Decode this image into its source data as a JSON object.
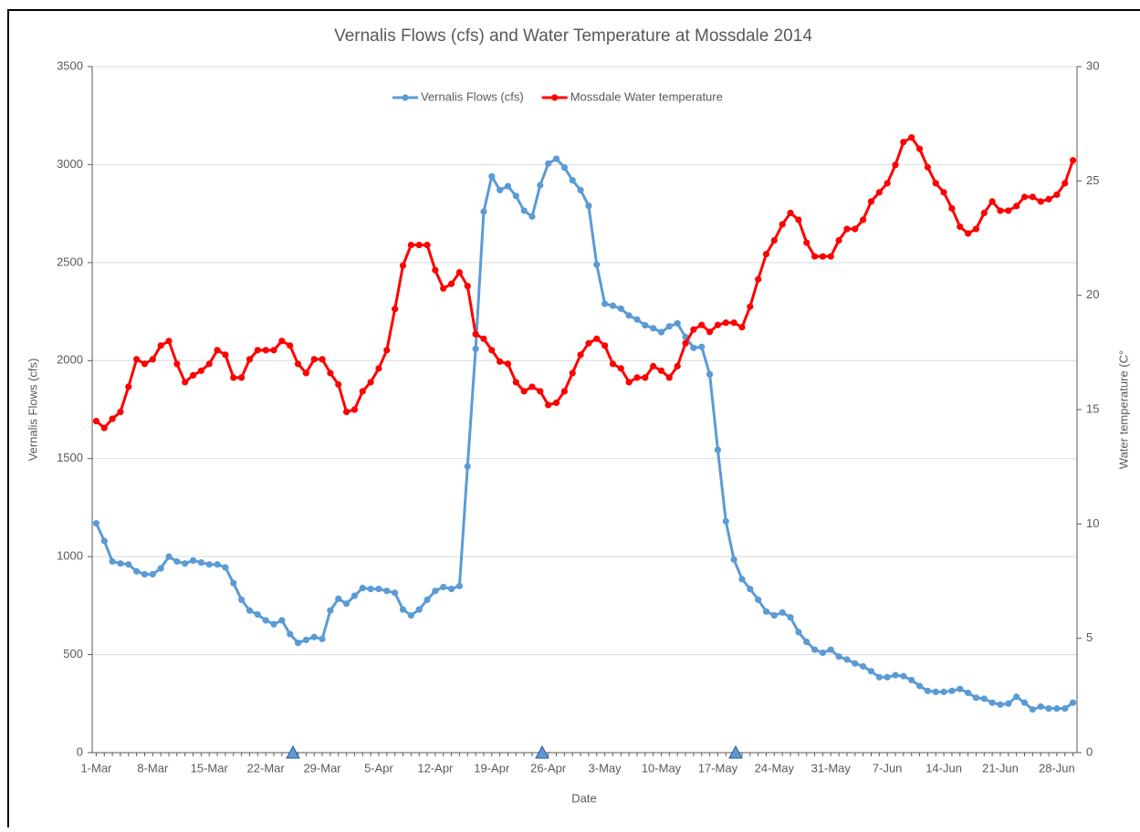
{
  "chart_data": {
    "type": "line",
    "title": "Vernalis Flows (cfs) and Water Temperature at Mossdale 2014",
    "x_label": "Date",
    "y_label": "Vernalis Flows (cfs)",
    "y2_label": "Water temperature (C°",
    "categories": [
      "1-Mar",
      null,
      null,
      null,
      null,
      null,
      null,
      "8-Mar",
      null,
      null,
      null,
      null,
      null,
      null,
      "15-Mar",
      null,
      null,
      null,
      null,
      null,
      null,
      "22-Mar",
      null,
      null,
      null,
      null,
      null,
      null,
      "29-Mar",
      null,
      null,
      null,
      null,
      null,
      null,
      "5-Apr",
      null,
      null,
      null,
      null,
      null,
      null,
      "12-Apr",
      null,
      null,
      null,
      null,
      null,
      null,
      "19-Apr",
      null,
      null,
      null,
      null,
      null,
      null,
      "26-Apr",
      null,
      null,
      null,
      null,
      null,
      null,
      "3-May",
      null,
      null,
      null,
      null,
      null,
      null,
      "10-May",
      null,
      null,
      null,
      null,
      null,
      null,
      "17-May",
      null,
      null,
      null,
      null,
      null,
      null,
      "24-May",
      null,
      null,
      null,
      null,
      null,
      null,
      "31-May",
      null,
      null,
      null,
      null,
      null,
      null,
      "7-Jun",
      null,
      null,
      null,
      null,
      null,
      null,
      "14-Jun",
      null,
      null,
      null,
      null,
      null,
      null,
      "21-Jun",
      null,
      null,
      null,
      null,
      null,
      null,
      "28-Jun",
      null,
      null
    ],
    "series": [
      {
        "name": "Vernalis Flows (cfs)",
        "color": "#5b9bd5",
        "axis": "y",
        "values": [
          1170,
          1080,
          975,
          965,
          960,
          925,
          910,
          910,
          940,
          1000,
          975,
          965,
          980,
          970,
          960,
          960,
          945,
          865,
          780,
          725,
          705,
          675,
          655,
          675,
          605,
          560,
          575,
          590,
          580,
          725,
          785,
          760,
          800,
          840,
          835,
          835,
          825,
          815,
          730,
          700,
          730,
          780,
          825,
          845,
          835,
          850,
          1460,
          2060,
          2760,
          2940,
          2870,
          2890,
          2840,
          2765,
          2735,
          2895,
          3005,
          3030,
          2985,
          2920,
          2870,
          2790,
          2490,
          2290,
          2280,
          2265,
          2230,
          2210,
          2180,
          2165,
          2145,
          2175,
          2190,
          2120,
          2065,
          2070,
          1930,
          1545,
          1180,
          985,
          885,
          835,
          780,
          720,
          700,
          715,
          690,
          615,
          565,
          525,
          510,
          525,
          490,
          475,
          455,
          440,
          415,
          385,
          385,
          395,
          390,
          370,
          340,
          315,
          310,
          310,
          315,
          325,
          305,
          280,
          275,
          255,
          245,
          250,
          285,
          255,
          220,
          235,
          225,
          225,
          225,
          255
        ]
      },
      {
        "name": "Mossdale Water temperature",
        "color": "#ff0000",
        "axis": "y2",
        "values": [
          14.5,
          14.2,
          14.6,
          14.9,
          16.0,
          17.2,
          17.0,
          17.2,
          17.8,
          18.0,
          17.0,
          16.2,
          16.5,
          16.7,
          17.0,
          17.6,
          17.4,
          16.4,
          16.4,
          17.2,
          17.6,
          17.6,
          17.6,
          18.0,
          17.8,
          17.0,
          16.6,
          17.2,
          17.2,
          16.6,
          16.1,
          14.9,
          15.0,
          15.8,
          16.2,
          16.8,
          17.6,
          19.4,
          21.3,
          22.2,
          22.2,
          22.2,
          21.1,
          20.3,
          20.5,
          21.0,
          20.4,
          18.3,
          18.1,
          17.6,
          17.1,
          17.0,
          16.2,
          15.8,
          16.0,
          15.8,
          15.2,
          15.3,
          15.8,
          16.6,
          17.4,
          17.9,
          18.1,
          17.8,
          17.0,
          16.8,
          16.2,
          16.4,
          16.4,
          16.9,
          16.7,
          16.4,
          16.9,
          17.9,
          18.5,
          18.7,
          18.4,
          18.7,
          18.8,
          18.8,
          18.6,
          19.5,
          20.7,
          21.8,
          22.4,
          23.1,
          23.6,
          23.3,
          22.3,
          21.7,
          21.7,
          21.7,
          22.4,
          22.9,
          22.9,
          23.3,
          24.1,
          24.5,
          24.9,
          25.7,
          26.7,
          26.9,
          26.4,
          25.6,
          24.9,
          24.5,
          23.8,
          23.0,
          22.7,
          22.9,
          23.6,
          24.1,
          23.7,
          23.7,
          23.9,
          24.3,
          24.3,
          24.1,
          24.2,
          24.4,
          24.9,
          25.9
        ]
      }
    ],
    "ylim": [
      0,
      3500
    ],
    "yticks": [
      0,
      500,
      1000,
      1500,
      2000,
      2500,
      3000,
      3500
    ],
    "y2lim": [
      0,
      30
    ],
    "y2ticks": [
      0,
      5,
      10,
      15,
      20,
      25,
      30
    ],
    "grid": true,
    "legend": "top"
  }
}
